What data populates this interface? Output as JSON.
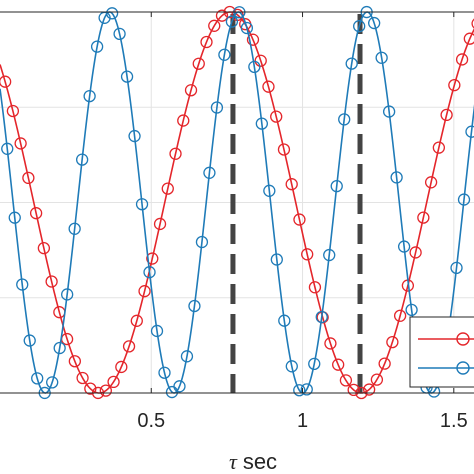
{
  "chart_data": {
    "type": "line",
    "xlabel_symbol": "τ",
    "xlabel_unit": "sec",
    "xlim": [
      0.0,
      1.58
    ],
    "ylim": [
      -1.0,
      1.0
    ],
    "x_ticks": [
      {
        "value": 0.5,
        "label": "0.5"
      },
      {
        "value": 1.0,
        "label": "1"
      },
      {
        "value": 1.5,
        "label": "1.5"
      }
    ],
    "grid": true,
    "series": [
      {
        "color": "#e4262b",
        "marker": "circle",
        "frequency_hz": 1.155,
        "phase_peak_x": 0.761,
        "marker_x_start": 0.017,
        "marker_x_step": 0.0256
      },
      {
        "color": "#1f7bb8",
        "marker": "circle",
        "frequency_hz": 2.35,
        "phase_peak_x": 0.3625,
        "marker_x_start": 0.024,
        "marker_x_step": 0.02475
      }
    ],
    "vertical_lines": [
      {
        "x": 0.77,
        "style": "dashed",
        "color": "#444444"
      },
      {
        "x": 1.19,
        "style": "dashed",
        "color": "#444444"
      }
    ],
    "legend": {
      "placement": "bottom-right",
      "entries": [
        {
          "color": "#e4262b",
          "marker": "circle"
        },
        {
          "color": "#1f7bb8",
          "marker": "circle"
        }
      ]
    }
  }
}
